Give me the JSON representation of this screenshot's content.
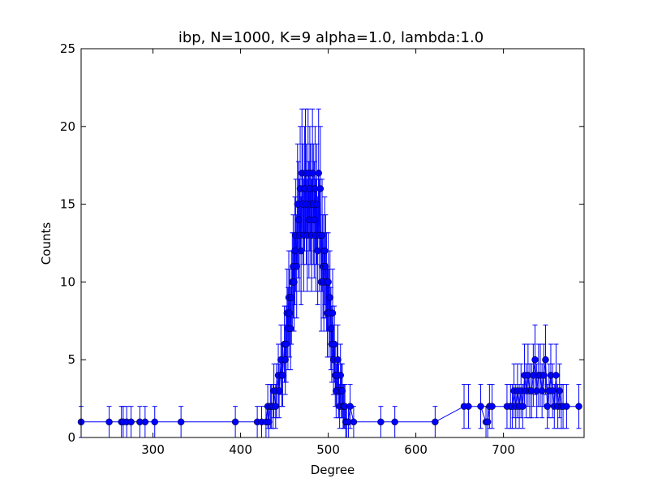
{
  "chart_data": {
    "type": "line",
    "title": "ibp, N=1000, K=9 alpha=1.0, lambda:1.0",
    "xlabel": "Degree",
    "ylabel": "Counts",
    "xlim": [
      218,
      792
    ],
    "ylim": [
      0,
      25
    ],
    "xticks": [
      300,
      400,
      500,
      600,
      700
    ],
    "yticks": [
      0,
      5,
      10,
      15,
      20,
      25
    ],
    "grid": false,
    "color": "#0000ff",
    "error_bars": "sqrt",
    "series": [
      {
        "x": [
          218,
          250,
          264,
          266,
          270,
          275,
          285,
          291,
          302,
          332,
          394,
          419,
          424,
          429,
          431,
          432,
          434,
          435,
          437,
          438,
          440,
          441,
          443,
          444,
          446,
          447,
          448,
          450,
          451,
          452,
          453,
          454,
          455,
          456,
          457,
          458,
          459,
          460,
          461,
          462,
          463,
          464,
          465,
          466,
          467,
          468,
          469,
          470,
          471,
          472,
          473,
          474,
          475,
          476,
          477,
          478,
          479,
          480,
          481,
          482,
          483,
          484,
          485,
          486,
          487,
          488,
          489,
          490,
          491,
          492,
          493,
          494,
          495,
          496,
          497,
          498,
          499,
          500,
          501,
          502,
          503,
          504,
          505,
          506,
          507,
          508,
          509,
          510,
          511,
          512,
          513,
          514,
          515,
          516,
          517,
          518,
          519,
          520,
          521,
          523,
          525,
          529,
          560,
          576,
          622,
          655,
          660,
          674,
          680,
          682,
          684,
          687,
          704,
          708,
          710,
          712,
          714,
          716,
          718,
          720,
          722,
          724,
          726,
          728,
          730,
          732,
          734,
          736,
          738,
          740,
          742,
          744,
          746,
          748,
          750,
          752,
          754,
          756,
          758,
          760,
          762,
          764,
          766,
          768,
          772,
          786
        ],
        "y": [
          1,
          1,
          1,
          1,
          1,
          1,
          1,
          1,
          1,
          1,
          1,
          1,
          1,
          1,
          2,
          1,
          2,
          2,
          2,
          3,
          2,
          3,
          4,
          3,
          5,
          4,
          4,
          6,
          5,
          6,
          8,
          7,
          9,
          8,
          7,
          9,
          10,
          11,
          10,
          12,
          13,
          11,
          15,
          14,
          13,
          16,
          12,
          17,
          15,
          13,
          16,
          17,
          15,
          13,
          17,
          14,
          16,
          15,
          13,
          17,
          15,
          14,
          16,
          13,
          15,
          12,
          17,
          13,
          16,
          10,
          13,
          11,
          10,
          12,
          11,
          10,
          8,
          10,
          8,
          9,
          7,
          6,
          8,
          5,
          6,
          4,
          3,
          4,
          5,
          3,
          2,
          4,
          3,
          3,
          2,
          2,
          2,
          1,
          1,
          1,
          2,
          1,
          1,
          1,
          1,
          2,
          2,
          2,
          1,
          1,
          2,
          2,
          2,
          2,
          2,
          3,
          2,
          3,
          2,
          3,
          2,
          4,
          3,
          4,
          3,
          3,
          4,
          5,
          3,
          4,
          4,
          3,
          4,
          5,
          2,
          3,
          4,
          3,
          2,
          4,
          2,
          3,
          2,
          2,
          2,
          2
        ]
      }
    ]
  }
}
